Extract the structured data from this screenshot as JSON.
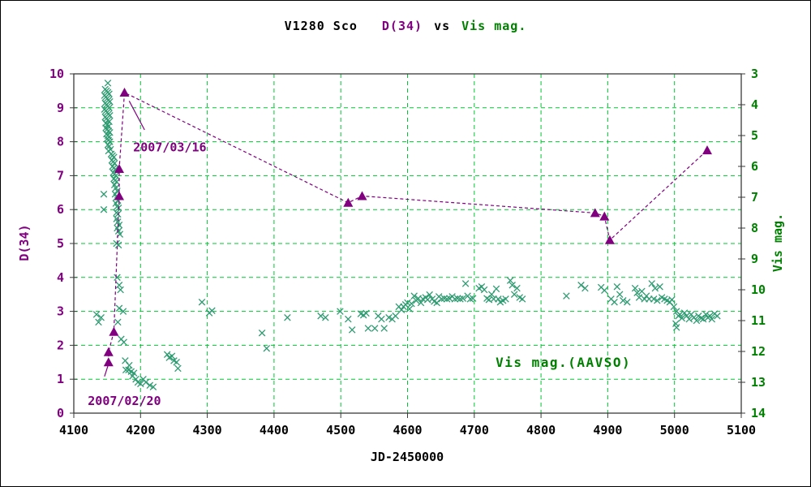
{
  "header": {
    "title_object": "V1280 Sco",
    "title_series1": "D(34)",
    "title_vs": "vs",
    "title_series2": "Vis mag."
  },
  "chart_data": {
    "type": "scatter",
    "title": "V1280 Sco  D(34) vs Vis mag.",
    "x_axis": {
      "label": "JD-2450000",
      "min": 4100,
      "max": 5100,
      "step": 100
    },
    "y_left": {
      "label": "D(34)",
      "min": 0,
      "max": 10,
      "step": 1,
      "color": "#800080"
    },
    "y_right": {
      "label": "Vis mag.",
      "min": 3,
      "max": 14,
      "step": 1,
      "inverted": true,
      "color": "#008000"
    },
    "grid": {
      "color": "#00C832",
      "style": "dashed"
    },
    "legend": {
      "text": "Vis mag.(AAVSO)",
      "x": 4732,
      "y_right": 12.5
    },
    "annotations": [
      {
        "text": "2007/03/16",
        "x": 4189,
        "y_left": 7.72,
        "line": [
          [
            4183,
            9.2
          ],
          [
            4206,
            8.35
          ]
        ]
      },
      {
        "text": "2007/02/20",
        "x": 4121,
        "y_left": 0.24,
        "line": [
          [
            4146,
            1.08
          ],
          [
            4152,
            1.45
          ]
        ]
      }
    ],
    "series": [
      {
        "name": "D(34)",
        "axis": "left",
        "marker": "triangle",
        "color": "#800080",
        "line": "dashed",
        "points": [
          [
            4152,
            1.5
          ],
          [
            4152,
            1.8
          ],
          [
            4160,
            2.4
          ],
          [
            4168,
            6.4
          ],
          [
            4168,
            7.2
          ],
          [
            4176,
            9.45
          ],
          [
            4511,
            6.2
          ],
          [
            4532,
            6.4
          ],
          [
            4881,
            5.9
          ],
          [
            4895,
            5.8
          ],
          [
            4903,
            5.1
          ],
          [
            5049,
            7.75
          ]
        ]
      },
      {
        "name": "Vis mag.(AAVSO)",
        "axis": "right",
        "marker": "x",
        "color": "#2E9B72",
        "line": "none",
        "points": [
          [
            4134,
            10.8
          ],
          [
            4141,
            10.9
          ],
          [
            4137,
            11.05
          ],
          [
            4145,
            6.9
          ],
          [
            4145,
            7.4
          ],
          [
            4151,
            3.3
          ],
          [
            4147,
            3.5
          ],
          [
            4149,
            3.55
          ],
          [
            4151,
            3.6
          ],
          [
            4153,
            3.65
          ],
          [
            4146,
            3.7
          ],
          [
            4148,
            3.75
          ],
          [
            4150,
            3.8
          ],
          [
            4152,
            3.85
          ],
          [
            4154,
            3.9
          ],
          [
            4147,
            3.95
          ],
          [
            4149,
            4.0
          ],
          [
            4151,
            4.05
          ],
          [
            4153,
            4.1
          ],
          [
            4146,
            4.15
          ],
          [
            4148,
            4.2
          ],
          [
            4150,
            4.25
          ],
          [
            4152,
            4.3
          ],
          [
            4154,
            4.35
          ],
          [
            4147,
            4.4
          ],
          [
            4149,
            4.45
          ],
          [
            4151,
            4.5
          ],
          [
            4153,
            4.55
          ],
          [
            4148,
            4.6
          ],
          [
            4150,
            4.65
          ],
          [
            4152,
            4.7
          ],
          [
            4148,
            4.75
          ],
          [
            4150,
            4.8
          ],
          [
            4152,
            4.85
          ],
          [
            4154,
            4.9
          ],
          [
            4149,
            4.95
          ],
          [
            4151,
            5.0
          ],
          [
            4153,
            5.05
          ],
          [
            4150,
            5.1
          ],
          [
            4152,
            5.15
          ],
          [
            4154,
            5.2
          ],
          [
            4151,
            5.3
          ],
          [
            4153,
            5.35
          ],
          [
            4155,
            5.45
          ],
          [
            4152,
            5.5
          ],
          [
            4156,
            5.6
          ],
          [
            4158,
            5.65
          ],
          [
            4160,
            5.7
          ],
          [
            4157,
            5.8
          ],
          [
            4159,
            5.85
          ],
          [
            4161,
            5.9
          ],
          [
            4158,
            6.0
          ],
          [
            4160,
            6.05
          ],
          [
            4162,
            6.1
          ],
          [
            4159,
            6.2
          ],
          [
            4161,
            6.25
          ],
          [
            4163,
            6.3
          ],
          [
            4160,
            6.4
          ],
          [
            4162,
            6.45
          ],
          [
            4164,
            6.5
          ],
          [
            4161,
            6.6
          ],
          [
            4163,
            6.7
          ],
          [
            4165,
            6.8
          ],
          [
            4162,
            6.9
          ],
          [
            4164,
            7.0
          ],
          [
            4166,
            7.1
          ],
          [
            4163,
            7.2
          ],
          [
            4165,
            7.3
          ],
          [
            4167,
            7.35
          ],
          [
            4164,
            7.5
          ],
          [
            4166,
            7.55
          ],
          [
            4164,
            7.7
          ],
          [
            4166,
            7.8
          ],
          [
            4168,
            7.9
          ],
          [
            4165,
            8.0
          ],
          [
            4167,
            8.1
          ],
          [
            4169,
            8.2
          ],
          [
            4164,
            8.5
          ],
          [
            4167,
            8.55
          ],
          [
            4165,
            9.6
          ],
          [
            4168,
            9.85
          ],
          [
            4170,
            10.0
          ],
          [
            4168,
            10.6
          ],
          [
            4174,
            10.7
          ],
          [
            4166,
            11.05
          ],
          [
            4171,
            11.6
          ],
          [
            4175,
            11.7
          ],
          [
            4177,
            12.3
          ],
          [
            4183,
            12.45
          ],
          [
            4178,
            12.6
          ],
          [
            4182,
            12.6
          ],
          [
            4186,
            12.65
          ],
          [
            4190,
            12.7
          ],
          [
            4188,
            12.8
          ],
          [
            4193,
            12.9
          ],
          [
            4196,
            13.0
          ],
          [
            4200,
            13.05
          ],
          [
            4204,
            12.9
          ],
          [
            4208,
            13.0
          ],
          [
            4214,
            13.1
          ],
          [
            4219,
            13.15
          ],
          [
            4240,
            12.1
          ],
          [
            4243,
            12.2
          ],
          [
            4247,
            12.15
          ],
          [
            4250,
            12.3
          ],
          [
            4254,
            12.35
          ],
          [
            4256,
            12.55
          ],
          [
            4292,
            10.4
          ],
          [
            4303,
            10.75
          ],
          [
            4307,
            10.68
          ],
          [
            4382,
            11.4
          ],
          [
            4389,
            11.9
          ],
          [
            4420,
            10.9
          ],
          [
            4470,
            10.85
          ],
          [
            4477,
            10.9
          ],
          [
            4499,
            10.7
          ],
          [
            4511,
            10.95
          ],
          [
            4517,
            11.3
          ],
          [
            4530,
            10.78
          ],
          [
            4534,
            10.82
          ],
          [
            4538,
            10.76
          ],
          [
            4541,
            11.25
          ],
          [
            4551,
            11.25
          ],
          [
            4556,
            10.85
          ],
          [
            4561,
            10.95
          ],
          [
            4565,
            11.25
          ],
          [
            4572,
            10.9
          ],
          [
            4577,
            10.95
          ],
          [
            4582,
            10.85
          ],
          [
            4587,
            10.55
          ],
          [
            4591,
            10.65
          ],
          [
            4594,
            10.55
          ],
          [
            4597,
            10.48
          ],
          [
            4600,
            10.42
          ],
          [
            4603,
            10.62
          ],
          [
            4606,
            10.45
          ],
          [
            4610,
            10.2
          ],
          [
            4613,
            10.35
          ],
          [
            4616,
            10.28
          ],
          [
            4620,
            10.42
          ],
          [
            4623,
            10.3
          ],
          [
            4627,
            10.25
          ],
          [
            4630,
            10.32
          ],
          [
            4633,
            10.16
          ],
          [
            4637,
            10.3
          ],
          [
            4640,
            10.38
          ],
          [
            4644,
            10.42
          ],
          [
            4647,
            10.22
          ],
          [
            4651,
            10.3
          ],
          [
            4655,
            10.28
          ],
          [
            4659,
            10.3
          ],
          [
            4663,
            10.28
          ],
          [
            4667,
            10.22
          ],
          [
            4671,
            10.3
          ],
          [
            4675,
            10.28
          ],
          [
            4679,
            10.3
          ],
          [
            4683,
            10.28
          ],
          [
            4687,
            9.8
          ],
          [
            4690,
            10.2
          ],
          [
            4694,
            10.3
          ],
          [
            4698,
            10.28
          ],
          [
            4707,
            9.95
          ],
          [
            4711,
            9.9
          ],
          [
            4715,
            10.0
          ],
          [
            4719,
            10.28
          ],
          [
            4722,
            10.32
          ],
          [
            4726,
            10.15
          ],
          [
            4729,
            10.3
          ],
          [
            4733,
            9.97
          ],
          [
            4736,
            10.3
          ],
          [
            4739,
            10.4
          ],
          [
            4743,
            10.35
          ],
          [
            4747,
            10.3
          ],
          [
            4754,
            9.7
          ],
          [
            4757,
            9.85
          ],
          [
            4760,
            10.15
          ],
          [
            4764,
            9.95
          ],
          [
            4768,
            10.25
          ],
          [
            4772,
            10.3
          ],
          [
            4838,
            10.2
          ],
          [
            4860,
            9.85
          ],
          [
            4866,
            9.95
          ],
          [
            4890,
            9.92
          ],
          [
            4895,
            10.02
          ],
          [
            4905,
            10.3
          ],
          [
            4910,
            10.4
          ],
          [
            4914,
            9.9
          ],
          [
            4918,
            10.15
          ],
          [
            4923,
            10.35
          ],
          [
            4929,
            10.4
          ],
          [
            4941,
            9.95
          ],
          [
            4944,
            10.1
          ],
          [
            4947,
            10.25
          ],
          [
            4951,
            10.05
          ],
          [
            4955,
            10.3
          ],
          [
            4958,
            10.2
          ],
          [
            4962,
            10.3
          ],
          [
            4966,
            9.8
          ],
          [
            4971,
            9.95
          ],
          [
            4978,
            9.9
          ],
          [
            4969,
            10.3
          ],
          [
            4974,
            10.35
          ],
          [
            4981,
            10.25
          ],
          [
            4985,
            10.3
          ],
          [
            4989,
            10.35
          ],
          [
            4993,
            10.4
          ],
          [
            4996,
            10.32
          ],
          [
            4999,
            10.55
          ],
          [
            5003,
            10.7
          ],
          [
            5006,
            10.85
          ],
          [
            5002,
            11.1
          ],
          [
            5003,
            11.22
          ],
          [
            5008,
            10.8
          ],
          [
            5011,
            10.92
          ],
          [
            5015,
            10.75
          ],
          [
            5018,
            10.85
          ],
          [
            5022,
            10.95
          ],
          [
            5025,
            10.8
          ],
          [
            5029,
            10.9
          ],
          [
            5033,
            11.0
          ],
          [
            5036,
            10.85
          ],
          [
            5040,
            10.92
          ],
          [
            5043,
            10.95
          ],
          [
            5047,
            10.8
          ],
          [
            5050,
            10.9
          ],
          [
            5053,
            10.85
          ],
          [
            5056,
            10.95
          ],
          [
            5060,
            10.78
          ],
          [
            5064,
            10.85
          ]
        ]
      }
    ]
  }
}
